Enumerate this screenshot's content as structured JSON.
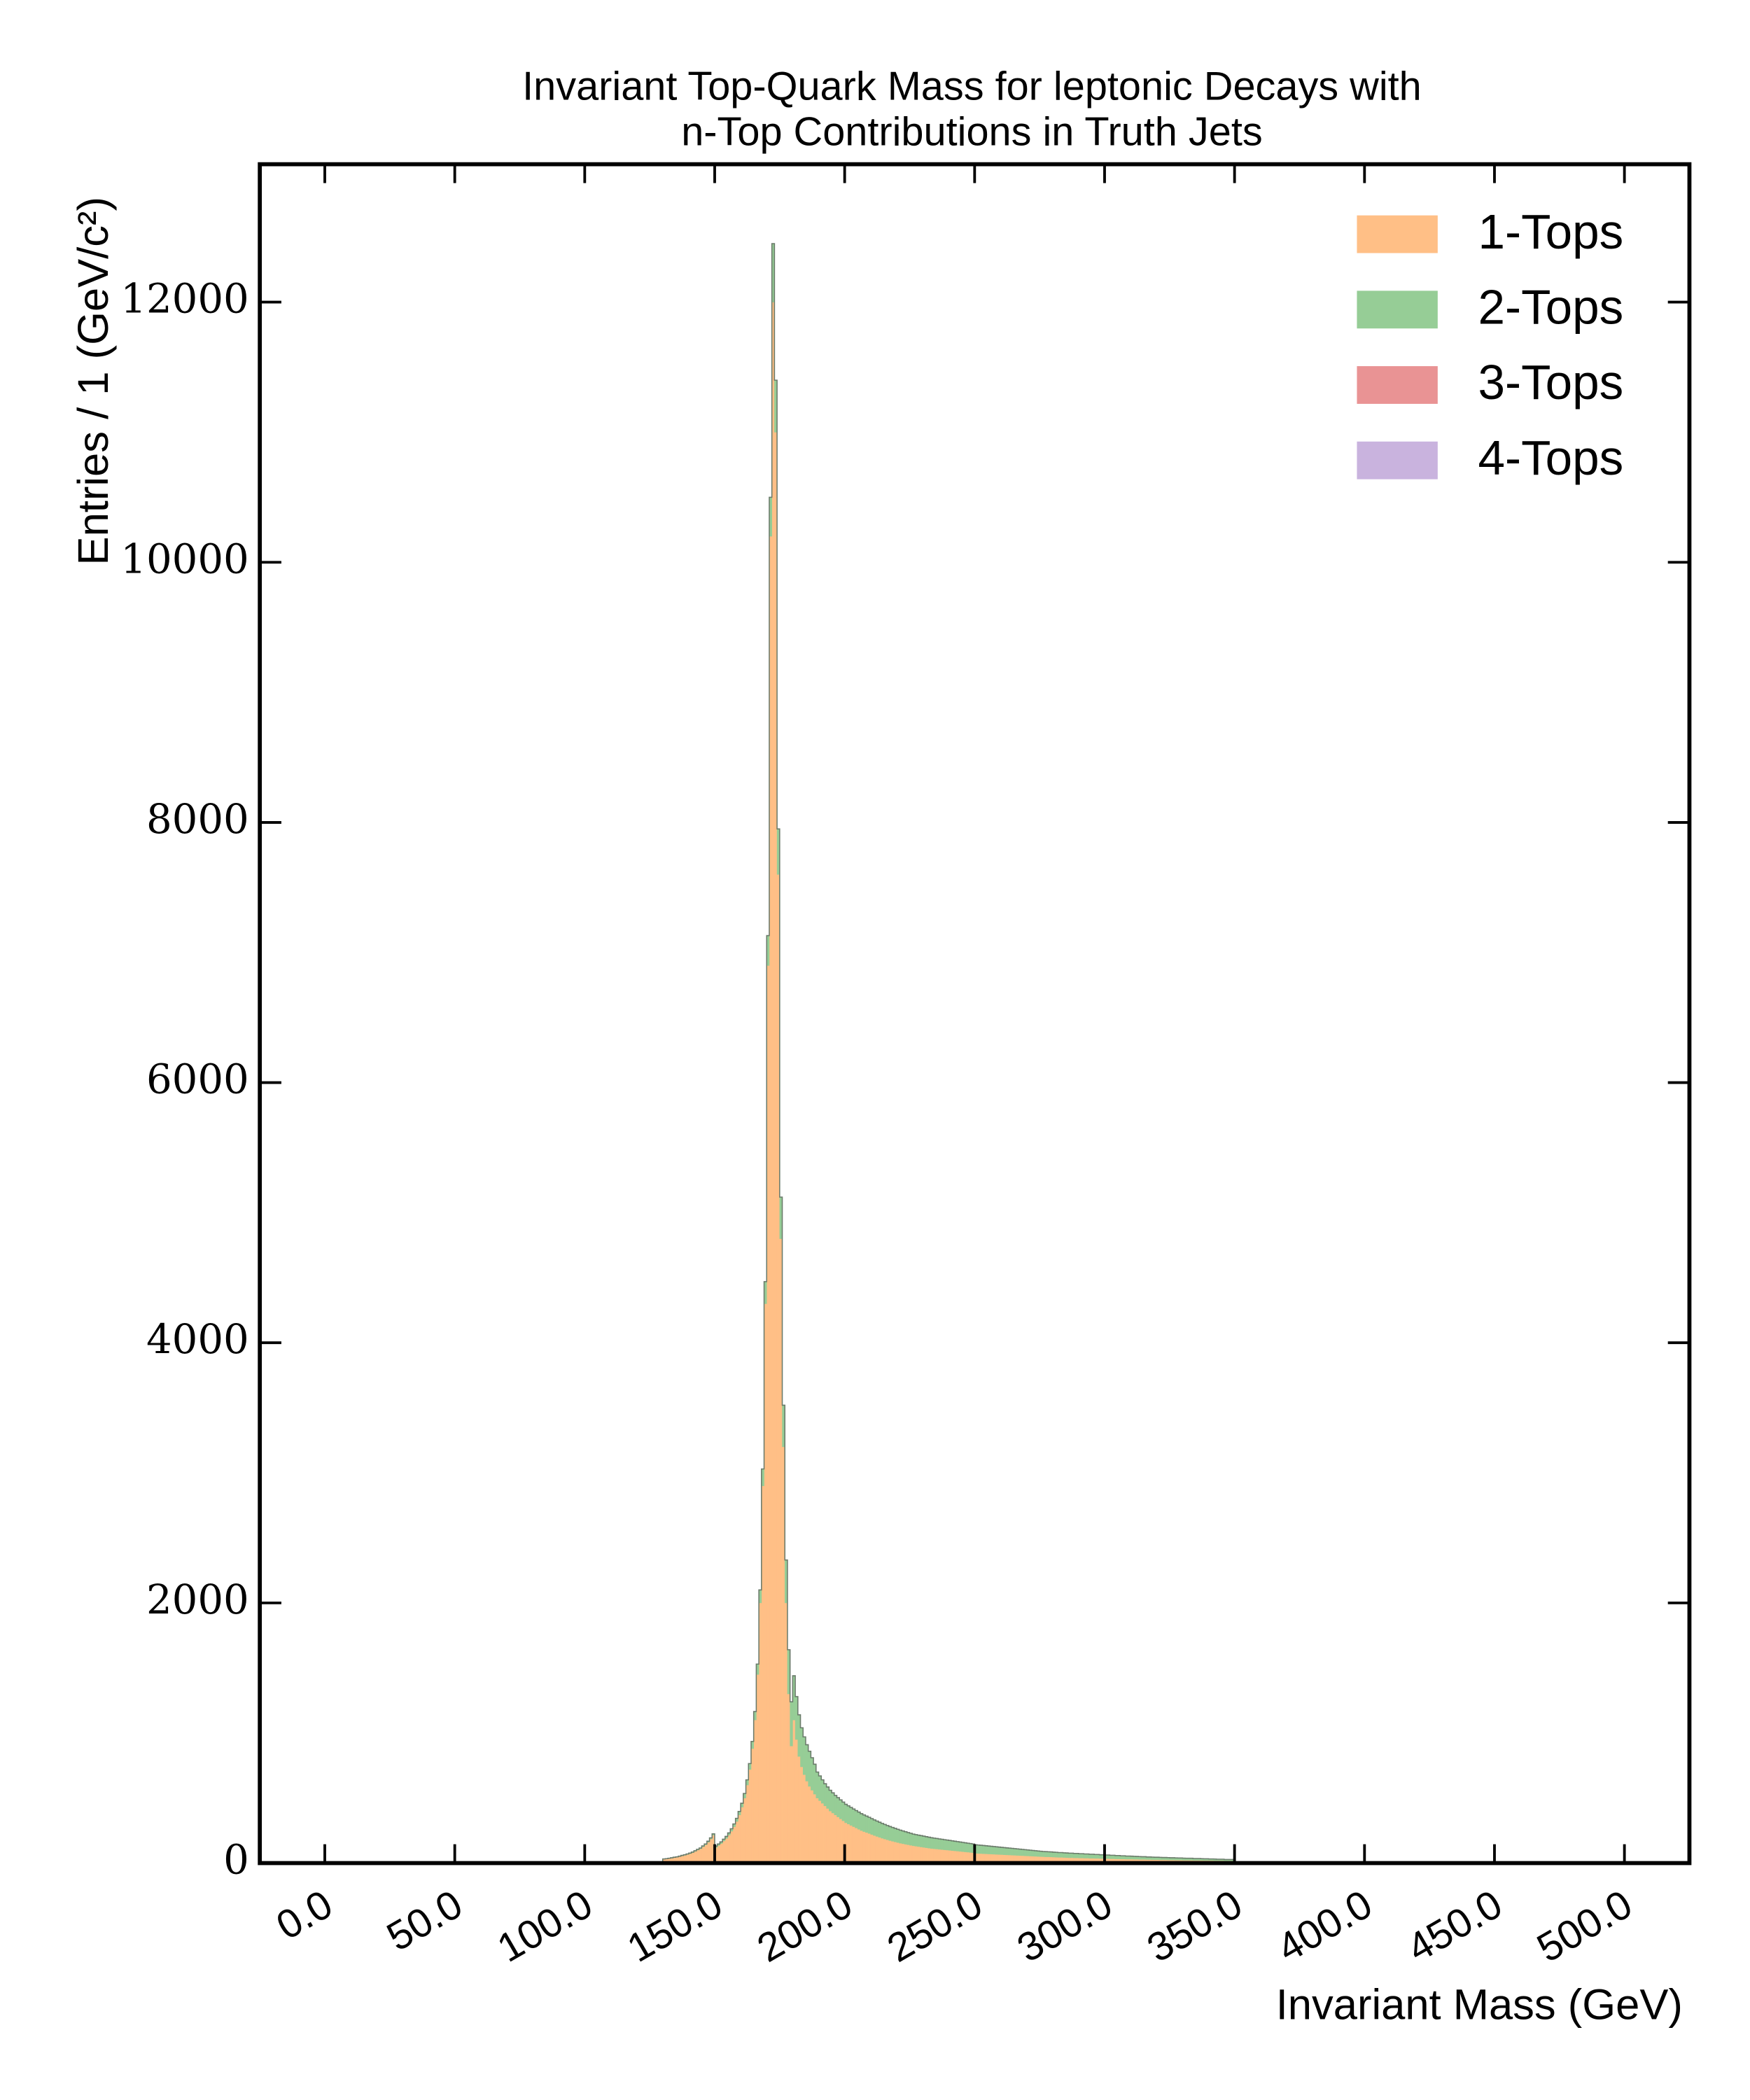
{
  "chart_data": {
    "type": "histogram",
    "title": [
      "Invariant Top-Quark Mass for leptonic Decays with",
      "n-Top Contributions in Truth Jets"
    ],
    "x_label": "Invariant Mass (GeV)",
    "y_label": "Entries / 1 (GeV/c²)",
    "legend": "upper right",
    "stacked": true,
    "xlim": [
      -25,
      525
    ],
    "ylim": [
      0,
      13060
    ],
    "xticks": [
      {
        "value": 0,
        "label": "0.0"
      },
      {
        "value": 50,
        "label": "50.0"
      },
      {
        "value": 100,
        "label": "100.0"
      },
      {
        "value": 150,
        "label": "150.0"
      },
      {
        "value": 200,
        "label": "200.0"
      },
      {
        "value": 250,
        "label": "250.0"
      },
      {
        "value": 300,
        "label": "300.0"
      },
      {
        "value": 350,
        "label": "350.0"
      },
      {
        "value": 400,
        "label": "400.0"
      },
      {
        "value": 450,
        "label": "450.0"
      },
      {
        "value": 500,
        "label": "500.0"
      }
    ],
    "yticks": [
      0,
      2000,
      4000,
      6000,
      8000,
      10000,
      12000
    ],
    "bins": [
      130,
      131,
      132,
      133,
      134,
      135,
      136,
      137,
      138,
      139,
      140,
      141,
      142,
      143,
      144,
      145,
      146,
      147,
      148,
      149,
      150,
      151,
      152,
      153,
      154,
      155,
      156,
      157,
      158,
      159,
      160,
      161,
      162,
      163,
      164,
      165,
      166,
      167,
      168,
      169,
      170,
      171,
      172,
      173,
      174,
      175,
      176,
      177,
      178,
      179,
      180,
      181,
      182,
      183,
      184,
      185,
      186,
      187,
      188,
      189,
      190,
      191,
      192,
      193,
      194,
      195,
      196,
      197,
      198,
      199,
      200,
      201,
      202,
      203,
      204,
      205,
      206,
      207,
      208,
      209,
      210,
      211,
      212,
      213,
      214,
      215,
      216,
      217,
      218,
      219,
      220,
      221,
      222,
      223,
      224,
      225,
      226,
      227,
      228,
      229,
      230,
      231,
      232,
      233,
      234,
      235,
      236,
      237,
      238,
      239,
      240,
      241,
      242,
      243,
      244,
      245,
      246,
      247,
      248,
      249,
      250,
      251,
      252,
      253,
      254,
      255,
      256,
      257,
      258,
      259,
      260,
      261,
      262,
      263,
      264,
      265,
      266,
      267,
      268,
      269,
      270,
      271,
      272,
      273,
      274,
      275,
      276,
      277,
      278,
      279,
      280,
      281,
      282,
      283,
      284,
      285,
      286,
      287,
      288,
      289,
      290,
      291,
      292,
      293,
      294,
      295,
      296,
      297,
      298,
      299,
      300,
      301,
      302,
      303,
      304,
      305,
      306,
      307,
      308,
      309,
      310,
      311,
      312,
      313,
      314,
      315,
      316,
      317,
      318,
      319,
      320,
      321,
      322,
      323,
      324,
      325,
      326,
      327,
      328,
      329,
      330,
      331,
      332,
      333,
      334,
      335,
      336,
      337,
      338,
      339,
      340,
      341,
      342,
      343,
      344,
      345,
      346,
      347,
      348,
      349,
      350
    ],
    "series": [
      {
        "name": "1-Tops",
        "color": "#ffbf86",
        "values": [
          30,
          32,
          35,
          38,
          42,
          45,
          50,
          55,
          60,
          66,
          72,
          80,
          90,
          100,
          110,
          125,
          140,
          160,
          185,
          215,
          120,
          135,
          150,
          170,
          190,
          215,
          245,
          280,
          320,
          370,
          430,
          500,
          600,
          720,
          880,
          1100,
          1450,
          2000,
          2900,
          4300,
          6900,
          10200,
          12000,
          11000,
          7600,
          4800,
          3200,
          2000,
          1300,
          900,
          1100,
          950,
          820,
          740,
          680,
          630,
          590,
          560,
          530,
          500,
          480,
          460,
          440,
          420,
          400,
          385,
          370,
          355,
          340,
          325,
          310,
          300,
          290,
          280,
          270,
          260,
          250,
          242,
          235,
          228,
          220,
          212,
          205,
          198,
          191,
          185,
          179,
          173,
          168,
          163,
          158,
          153,
          149,
          145,
          141,
          137,
          133,
          130,
          127,
          124,
          121,
          118,
          115,
          112,
          110,
          108,
          106,
          104,
          102,
          100,
          98,
          96,
          94,
          92,
          90,
          88,
          86,
          84,
          82,
          80,
          75,
          74,
          73,
          72,
          71,
          70,
          69,
          68,
          67,
          66,
          65,
          64,
          63,
          62,
          61,
          60,
          59,
          58,
          57,
          56,
          55,
          54,
          53,
          52,
          51,
          50,
          49,
          48,
          48,
          47,
          46,
          45,
          44,
          44,
          43,
          42,
          41,
          41,
          40,
          40,
          39,
          39,
          38,
          38,
          37,
          37,
          36,
          36,
          35,
          35,
          34,
          34,
          33,
          33,
          32,
          32,
          31,
          31,
          30,
          30,
          30,
          29,
          29,
          28,
          28,
          28,
          27,
          27,
          26,
          26,
          26,
          25,
          25,
          25,
          24,
          24,
          24,
          23,
          23,
          23,
          22,
          22,
          22,
          22,
          21,
          21,
          21,
          21,
          20,
          20,
          20,
          20,
          19,
          19,
          19,
          19,
          18,
          18,
          18,
          18
        ]
      },
      {
        "name": "2-Tops",
        "color": "#96cd96",
        "values": [
          2,
          2,
          2,
          3,
          3,
          3,
          3,
          4,
          4,
          4,
          5,
          5,
          5,
          6,
          6,
          7,
          7,
          8,
          9,
          10,
          11,
          12,
          13,
          14,
          15,
          17,
          19,
          21,
          24,
          27,
          30,
          35,
          40,
          45,
          55,
          65,
          80,
          100,
          130,
          170,
          230,
          300,
          450,
          400,
          350,
          320,
          320,
          330,
          340,
          340,
          340,
          330,
          320,
          300,
          290,
          280,
          270,
          250,
          230,
          200,
          190,
          180,
          170,
          165,
          160,
          155,
          150,
          148,
          146,
          144,
          142,
          140,
          138,
          136,
          134,
          132,
          130,
          128,
          126,
          124,
          122,
          120,
          118,
          116,
          114,
          112,
          110,
          108,
          106,
          104,
          102,
          100,
          98,
          96,
          94,
          92,
          90,
          89,
          88,
          87,
          86,
          85,
          84,
          83,
          82,
          81,
          80,
          79,
          78,
          77,
          76,
          75,
          74,
          73,
          72,
          71,
          70,
          69,
          68,
          67,
          66,
          65,
          64,
          63,
          62,
          61,
          60,
          59,
          58,
          57,
          56,
          55,
          54,
          53,
          52,
          51,
          50,
          49,
          48,
          47,
          46,
          45,
          44,
          43,
          42,
          41,
          40,
          40,
          39,
          39,
          38,
          38,
          37,
          37,
          36,
          36,
          35,
          35,
          34,
          34,
          33,
          33,
          32,
          32,
          31,
          31,
          30,
          30,
          29,
          29,
          28,
          28,
          27,
          27,
          26,
          26,
          25,
          25,
          24,
          24,
          23,
          23,
          22,
          22,
          21,
          21,
          20,
          20,
          20,
          19,
          19,
          19,
          18,
          18,
          18,
          17,
          17,
          17,
          16,
          16,
          16,
          15,
          15,
          15,
          14,
          14,
          14,
          13,
          13,
          13,
          12,
          12,
          12,
          11,
          11,
          11,
          10,
          10,
          10,
          10
        ]
      },
      {
        "name": "3-Tops",
        "color": "#e99394",
        "values": [
          0,
          0,
          0,
          0,
          0,
          0,
          0,
          0,
          0,
          0,
          0,
          0,
          0,
          0,
          0,
          0,
          0,
          0,
          0,
          0,
          0,
          0,
          0,
          0,
          0,
          0,
          0,
          0,
          0,
          0,
          0,
          0,
          0,
          0,
          0,
          0,
          0,
          0,
          0,
          0,
          0,
          0,
          0,
          0,
          0,
          0,
          0,
          0,
          0,
          0,
          0,
          0,
          0,
          0,
          0,
          0,
          0,
          0,
          0,
          0,
          0,
          0,
          0,
          0,
          0,
          0,
          0,
          0,
          0,
          0,
          0,
          0,
          0,
          0,
          0,
          0,
          0,
          0,
          0,
          0,
          0,
          0,
          0,
          0,
          0,
          0,
          0,
          0,
          0,
          0,
          0,
          0,
          0,
          0,
          0,
          0,
          0,
          0,
          0,
          0,
          0,
          0,
          0,
          0,
          0,
          0,
          0,
          0,
          0,
          0,
          0,
          0,
          0,
          0,
          0,
          0,
          0,
          0,
          0,
          0,
          0,
          0,
          0,
          0,
          0,
          0,
          0,
          0,
          0,
          0,
          0,
          0,
          0,
          0,
          0,
          0,
          0,
          0,
          0,
          0,
          0,
          0,
          0,
          0,
          0,
          0,
          0,
          0,
          0,
          0,
          0,
          0,
          0,
          0,
          0,
          0,
          0,
          0,
          0,
          0,
          0,
          0,
          0,
          0,
          0,
          0,
          0,
          0,
          0,
          0,
          0,
          0,
          0,
          0,
          0,
          0,
          0,
          0,
          0,
          0,
          0,
          0,
          0,
          0,
          0,
          0,
          0,
          0,
          0,
          0,
          0,
          0,
          0,
          0,
          0,
          0,
          0,
          0,
          0,
          0,
          0,
          0,
          0,
          0,
          0,
          0,
          0,
          0,
          0,
          0,
          0,
          0,
          0,
          0,
          0,
          0,
          0,
          0,
          0,
          0
        ]
      },
      {
        "name": "4-Tops",
        "color": "#c9b3de",
        "values": [
          0,
          0,
          0,
          0,
          0,
          0,
          0,
          0,
          0,
          0,
          0,
          0,
          0,
          0,
          0,
          0,
          0,
          0,
          0,
          0,
          0,
          0,
          0,
          0,
          0,
          0,
          0,
          0,
          0,
          0,
          0,
          0,
          0,
          0,
          0,
          0,
          0,
          0,
          0,
          0,
          0,
          0,
          0,
          0,
          0,
          0,
          0,
          0,
          0,
          0,
          0,
          0,
          0,
          0,
          0,
          0,
          0,
          0,
          0,
          0,
          0,
          0,
          0,
          0,
          0,
          0,
          0,
          0,
          0,
          0,
          0,
          0,
          0,
          0,
          0,
          0,
          0,
          0,
          0,
          0,
          0,
          0,
          0,
          0,
          0,
          0,
          0,
          0,
          0,
          0,
          0,
          0,
          0,
          0,
          0,
          0,
          0,
          0,
          0,
          0,
          0,
          0,
          0,
          0,
          0,
          0,
          0,
          0,
          0,
          0,
          0,
          0,
          0,
          0,
          0,
          0,
          0,
          0,
          0,
          0,
          0,
          0,
          0,
          0,
          0,
          0,
          0,
          0,
          0,
          0,
          0,
          0,
          0,
          0,
          0,
          0,
          0,
          0,
          0,
          0,
          0,
          0,
          0,
          0,
          0,
          0,
          0,
          0,
          0,
          0,
          0,
          0,
          0,
          0,
          0,
          0,
          0,
          0,
          0,
          0,
          0,
          0,
          0,
          0,
          0,
          0,
          0,
          0,
          0,
          0,
          0,
          0,
          0,
          0,
          0,
          0,
          0,
          0,
          0,
          0,
          0,
          0,
          0,
          0,
          0,
          0,
          0,
          0,
          0,
          0,
          0,
          0,
          0,
          0,
          0,
          0,
          0,
          0,
          0,
          0,
          0,
          0,
          0,
          0,
          0,
          0,
          0,
          0,
          0,
          0,
          0,
          0,
          0,
          0,
          0,
          0,
          0,
          0,
          0,
          0
        ]
      }
    ]
  }
}
